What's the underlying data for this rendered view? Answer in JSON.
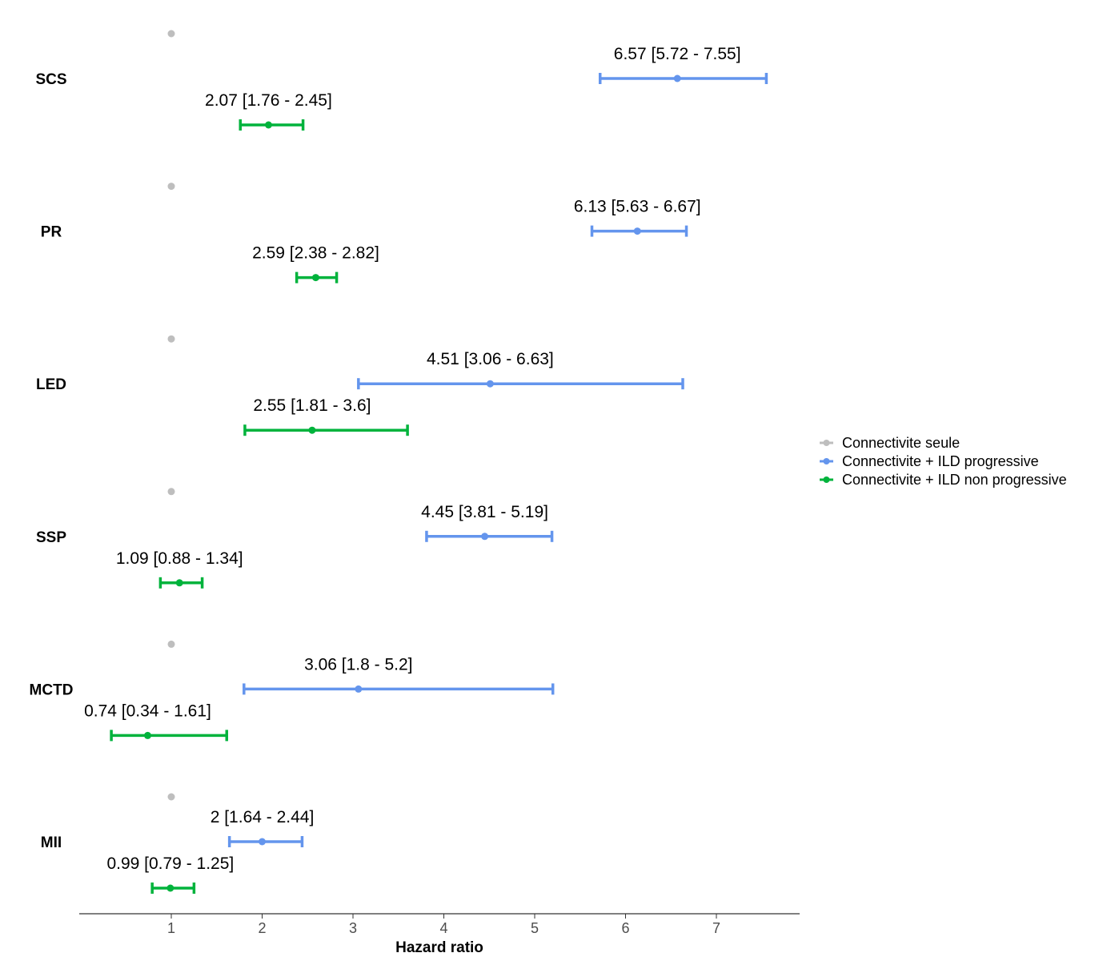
{
  "chart_data": {
    "type": "forest",
    "title": "",
    "xlabel": "Hazard ratio",
    "ylabel": "",
    "xlim": [
      0,
      7.9
    ],
    "xticks": [
      1,
      2,
      3,
      4,
      5,
      6,
      7
    ],
    "grid": false,
    "legend": {
      "position": "right",
      "entries": [
        {
          "name": "Connectivite seule",
          "color": "#bebebe"
        },
        {
          "name": "Connectivite + ILD progressive",
          "color": "#6495ed"
        },
        {
          "name": "Connectivite + ILD non progressive",
          "color": "#00b33c"
        }
      ]
    },
    "groups": [
      {
        "name": "SCS",
        "reference": {
          "hr": 1
        },
        "progressive": {
          "hr": 6.57,
          "low": 5.72,
          "high": 7.55,
          "label": "6.57 [5.72 - 7.55]"
        },
        "non_progressive": {
          "hr": 2.07,
          "low": 1.76,
          "high": 2.45,
          "label": "2.07 [1.76 - 2.45]"
        }
      },
      {
        "name": "PR",
        "reference": {
          "hr": 1
        },
        "progressive": {
          "hr": 6.13,
          "low": 5.63,
          "high": 6.67,
          "label": "6.13 [5.63 - 6.67]"
        },
        "non_progressive": {
          "hr": 2.59,
          "low": 2.38,
          "high": 2.82,
          "label": "2.59 [2.38 - 2.82]"
        }
      },
      {
        "name": "LED",
        "reference": {
          "hr": 1
        },
        "progressive": {
          "hr": 4.51,
          "low": 3.06,
          "high": 6.63,
          "label": "4.51 [3.06 - 6.63]"
        },
        "non_progressive": {
          "hr": 2.55,
          "low": 1.81,
          "high": 3.6,
          "label": "2.55 [1.81 - 3.6]"
        }
      },
      {
        "name": "SSP",
        "reference": {
          "hr": 1
        },
        "progressive": {
          "hr": 4.45,
          "low": 3.81,
          "high": 5.19,
          "label": "4.45 [3.81 - 5.19]"
        },
        "non_progressive": {
          "hr": 1.09,
          "low": 0.88,
          "high": 1.34,
          "label": "1.09 [0.88 - 1.34]"
        }
      },
      {
        "name": "MCTD",
        "reference": {
          "hr": 1
        },
        "progressive": {
          "hr": 3.06,
          "low": 1.8,
          "high": 5.2,
          "label": "3.06 [1.8 - 5.2]"
        },
        "non_progressive": {
          "hr": 0.74,
          "low": 0.34,
          "high": 1.61,
          "label": "0.74 [0.34 - 1.61]"
        }
      },
      {
        "name": "MII",
        "reference": {
          "hr": 1
        },
        "progressive": {
          "hr": 2,
          "low": 1.64,
          "high": 2.44,
          "label": "2 [1.64 - 2.44]"
        },
        "non_progressive": {
          "hr": 0.99,
          "low": 0.79,
          "high": 1.25,
          "label": "0.99 [0.79 - 1.25]"
        }
      }
    ]
  }
}
